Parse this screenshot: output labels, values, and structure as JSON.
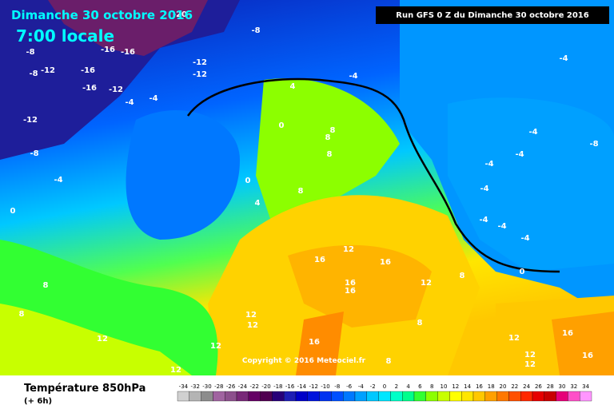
{
  "header": {
    "date": "Dimanche 30 octobre 2016",
    "time": "7:00 locale",
    "run": "Run GFS 0 Z du Dimanche 30 octobre 2016"
  },
  "copyright": "Copyright © 2016 Meteociel.fr",
  "legend": {
    "title": "Température 850hPa",
    "subtitle": "(+ 6h)",
    "labels": [
      "-34",
      "-32",
      "-30",
      "-28",
      "-26",
      "-24",
      "-22",
      "-20",
      "-18",
      "-16",
      "-14",
      "-12",
      "-10",
      "-8",
      "-6",
      "-4",
      "-2",
      "0",
      "2",
      "4",
      "6",
      "8",
      "10",
      "12",
      "14",
      "16",
      "18",
      "20",
      "22",
      "24",
      "26",
      "28",
      "30",
      "32",
      "34"
    ],
    "colors": [
      "#d0d0d0",
      "#b4b4b4",
      "#8c8c8c",
      "#a064a0",
      "#8c508c",
      "#782878",
      "#640064",
      "#500050",
      "#280078",
      "#1e1eb4",
      "#0000c8",
      "#0014dc",
      "#0032f0",
      "#0050ff",
      "#0078ff",
      "#00a0ff",
      "#00c8ff",
      "#00e6ff",
      "#00ffc8",
      "#00ff8c",
      "#32ff32",
      "#8cff00",
      "#c8ff00",
      "#ffff00",
      "#ffe600",
      "#ffc800",
      "#ffa000",
      "#ff7800",
      "#ff5000",
      "#ff2800",
      "#e60000",
      "#c80000",
      "#e60078",
      "#ff50c8",
      "#ff96ff"
    ]
  },
  "contour_labels": [
    "-20",
    "-8",
    "-8",
    "-16",
    "-16",
    "-12",
    "-16",
    "-12",
    "-12",
    "-8",
    "-16",
    "-12",
    "-4",
    "-4",
    "-4",
    "-4",
    "-12",
    "-8",
    "-4",
    "0",
    "4",
    "0",
    "8",
    "8",
    "8",
    "0",
    "4",
    "8",
    "-8",
    "-4",
    "-4",
    "-4",
    "-4",
    "-4",
    "-4",
    "-4",
    "0",
    "16",
    "16",
    "12",
    "16",
    "16",
    "12",
    "8",
    "8",
    "8",
    "12",
    "12",
    "12",
    "12",
    "16",
    "8",
    "8",
    "12",
    "16",
    "12",
    "12",
    "16",
    "12"
  ]
}
